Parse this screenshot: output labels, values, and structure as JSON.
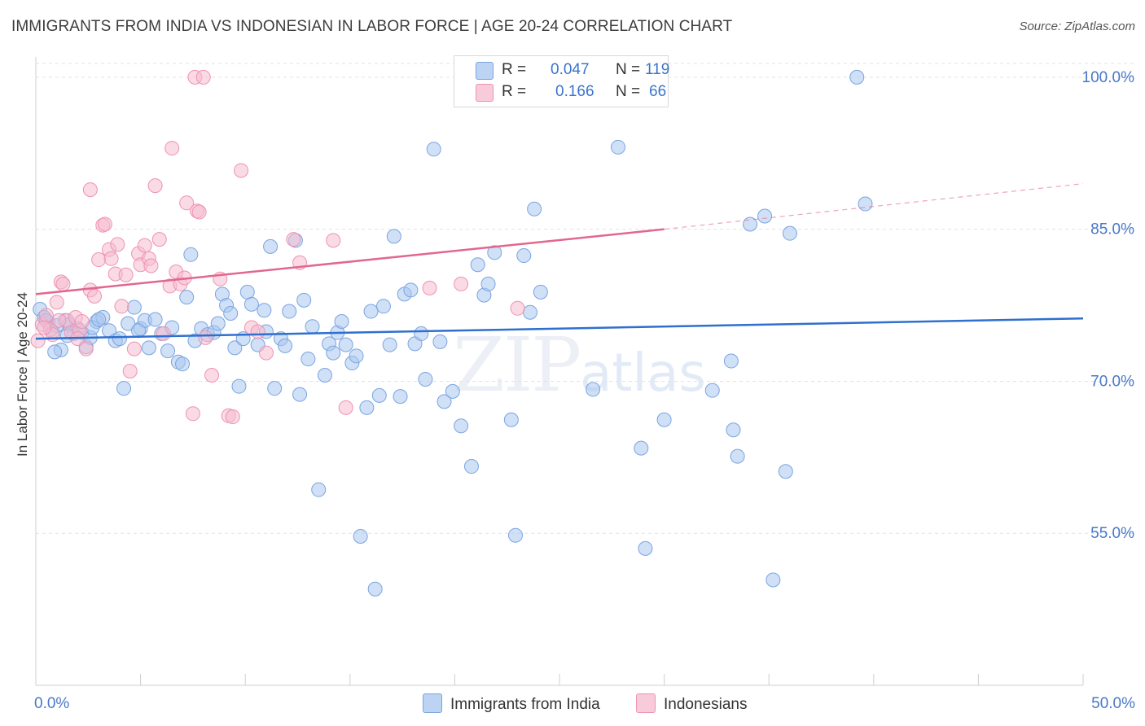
{
  "header": {
    "title": "IMMIGRANTS FROM INDIA VS INDONESIAN IN LABOR FORCE | AGE 20-24 CORRELATION CHART",
    "source": "Source: ZipAtlas.com"
  },
  "legend": {
    "series1": {
      "r_label": "R =",
      "r_value": "0.047",
      "n_label": "N =",
      "n_value": "119"
    },
    "series2": {
      "r_label": "R =",
      "r_value": "0.166",
      "n_label": "N =",
      "n_value": "66"
    }
  },
  "watermark": {
    "zip": "ZIP",
    "atlas": "atlas"
  },
  "colors": {
    "india_fill": "#a9c6ef",
    "india_stroke": "#7aa5e0",
    "india_line": "#2f6fcf",
    "indo_fill": "#f6bccf",
    "indo_stroke": "#ee93b1",
    "indo_line": "#e2678f",
    "tick_text": "#4a78c8",
    "grid": "#e3e3e3"
  },
  "chart_data": {
    "type": "scatter",
    "title": "IMMIGRANTS FROM INDIA VS INDONESIAN IN LABOR FORCE | AGE 20-24 CORRELATION CHART",
    "xlabel": "",
    "ylabel": "In Labor Force | Age 20-24",
    "xlim": [
      0,
      50
    ],
    "ylim": [
      40,
      102
    ],
    "x_tick_labels": [
      "0.0%",
      "50.0%"
    ],
    "y_ticks": [
      55,
      70,
      85,
      100
    ],
    "y_tick_labels": [
      "55.0%",
      "70.0%",
      "85.0%",
      "100.0%"
    ],
    "series": [
      {
        "name": "Immigrants from India",
        "r": 0.047,
        "n": 119,
        "trend": {
          "x0": 0,
          "y0": 74.2,
          "x1": 50,
          "y1": 76.2
        },
        "points": [
          [
            0.2,
            77.1
          ],
          [
            0.4,
            76.3
          ],
          [
            0.6,
            75.8
          ],
          [
            0.8,
            74.9
          ],
          [
            1.0,
            75.5
          ],
          [
            1.2,
            73.1
          ],
          [
            1.4,
            76.0
          ],
          [
            1.6,
            75.6
          ],
          [
            1.8,
            74.7
          ],
          [
            2.0,
            75.2
          ],
          [
            2.2,
            74.8
          ],
          [
            2.4,
            73.4
          ],
          [
            2.6,
            74.3
          ],
          [
            2.9,
            75.9
          ],
          [
            3.2,
            76.3
          ],
          [
            3.5,
            75.0
          ],
          [
            3.8,
            74.0
          ],
          [
            4.0,
            74.2
          ],
          [
            4.2,
            69.3
          ],
          [
            4.4,
            75.7
          ],
          [
            4.7,
            77.3
          ],
          [
            5.0,
            75.2
          ],
          [
            5.2,
            76.0
          ],
          [
            5.4,
            73.3
          ],
          [
            5.7,
            76.1
          ],
          [
            6.0,
            74.7
          ],
          [
            6.3,
            73.0
          ],
          [
            6.5,
            75.3
          ],
          [
            6.8,
            71.9
          ],
          [
            7.0,
            71.7
          ],
          [
            7.2,
            78.3
          ],
          [
            7.4,
            82.5
          ],
          [
            7.6,
            74.0
          ],
          [
            7.9,
            75.2
          ],
          [
            8.2,
            74.6
          ],
          [
            8.5,
            74.8
          ],
          [
            8.7,
            75.7
          ],
          [
            8.9,
            78.6
          ],
          [
            9.1,
            77.5
          ],
          [
            9.3,
            76.7
          ],
          [
            9.5,
            73.3
          ],
          [
            9.7,
            69.5
          ],
          [
            9.9,
            74.2
          ],
          [
            10.1,
            78.8
          ],
          [
            10.3,
            77.6
          ],
          [
            10.6,
            73.6
          ],
          [
            10.9,
            77.0
          ],
          [
            11.0,
            74.9
          ],
          [
            11.2,
            83.3
          ],
          [
            11.4,
            69.3
          ],
          [
            11.7,
            74.2
          ],
          [
            11.9,
            73.5
          ],
          [
            12.1,
            76.9
          ],
          [
            12.4,
            83.9
          ],
          [
            12.6,
            68.7
          ],
          [
            12.8,
            78.0
          ],
          [
            13.0,
            72.2
          ],
          [
            13.2,
            75.4
          ],
          [
            13.5,
            59.3
          ],
          [
            13.8,
            70.6
          ],
          [
            14.0,
            73.7
          ],
          [
            14.2,
            72.8
          ],
          [
            14.4,
            74.8
          ],
          [
            14.6,
            75.9
          ],
          [
            14.8,
            73.6
          ],
          [
            15.1,
            71.8
          ],
          [
            15.3,
            72.5
          ],
          [
            15.5,
            54.7
          ],
          [
            15.8,
            67.4
          ],
          [
            16.0,
            76.9
          ],
          [
            16.2,
            49.5
          ],
          [
            16.4,
            68.6
          ],
          [
            16.6,
            77.4
          ],
          [
            16.9,
            73.6
          ],
          [
            17.1,
            84.3
          ],
          [
            17.4,
            68.5
          ],
          [
            17.6,
            78.6
          ],
          [
            17.9,
            79.0
          ],
          [
            18.1,
            73.7
          ],
          [
            18.4,
            74.7
          ],
          [
            18.6,
            70.2
          ],
          [
            19.0,
            92.9
          ],
          [
            19.3,
            73.9
          ],
          [
            19.5,
            68.0
          ],
          [
            19.9,
            69.0
          ],
          [
            20.3,
            65.6
          ],
          [
            20.8,
            61.6
          ],
          [
            21.1,
            81.5
          ],
          [
            21.4,
            78.5
          ],
          [
            21.6,
            79.6
          ],
          [
            21.9,
            82.7
          ],
          [
            22.7,
            66.2
          ],
          [
            22.9,
            54.8
          ],
          [
            23.3,
            82.4
          ],
          [
            23.6,
            76.8
          ],
          [
            23.8,
            87.0
          ],
          [
            24.1,
            78.8
          ],
          [
            26.6,
            69.2
          ],
          [
            27.8,
            93.1
          ],
          [
            28.9,
            63.4
          ],
          [
            29.1,
            53.5
          ],
          [
            30.0,
            66.2
          ],
          [
            32.3,
            69.1
          ],
          [
            33.2,
            72.0
          ],
          [
            33.3,
            65.2
          ],
          [
            33.5,
            62.6
          ],
          [
            34.1,
            85.5
          ],
          [
            34.8,
            86.3
          ],
          [
            35.2,
            50.4
          ],
          [
            35.8,
            61.1
          ],
          [
            36.0,
            84.6
          ],
          [
            39.6,
            87.5
          ],
          [
            39.2,
            100.0
          ],
          [
            0.5,
            76.0
          ],
          [
            0.9,
            72.9
          ],
          [
            1.5,
            74.5
          ],
          [
            2.7,
            75.3
          ],
          [
            3.0,
            76.1
          ],
          [
            4.9,
            75.0
          ]
        ]
      },
      {
        "name": "Indonesians",
        "r": 0.166,
        "n": 66,
        "trend": {
          "x0": 0,
          "y0": 78.6,
          "x1": 30,
          "y1": 85.0
        },
        "trend_dashed": {
          "x0": 30,
          "y0": 85.0,
          "x1": 50,
          "y1": 89.5
        },
        "points": [
          [
            0.1,
            74.0
          ],
          [
            0.3,
            75.6
          ],
          [
            0.5,
            76.5
          ],
          [
            0.7,
            75.1
          ],
          [
            0.8,
            74.6
          ],
          [
            1.0,
            77.8
          ],
          [
            1.2,
            79.8
          ],
          [
            1.3,
            79.6
          ],
          [
            1.5,
            76.0
          ],
          [
            1.7,
            74.8
          ],
          [
            1.9,
            76.3
          ],
          [
            2.1,
            75.0
          ],
          [
            2.2,
            75.9
          ],
          [
            2.4,
            73.2
          ],
          [
            2.6,
            79.0
          ],
          [
            2.8,
            78.4
          ],
          [
            2.6,
            88.9
          ],
          [
            3.0,
            82.0
          ],
          [
            3.2,
            85.4
          ],
          [
            3.3,
            85.5
          ],
          [
            3.5,
            83.0
          ],
          [
            3.6,
            82.1
          ],
          [
            3.8,
            80.6
          ],
          [
            3.9,
            83.5
          ],
          [
            4.1,
            77.4
          ],
          [
            4.3,
            80.5
          ],
          [
            4.5,
            71.0
          ],
          [
            4.7,
            73.2
          ],
          [
            4.9,
            82.6
          ],
          [
            5.0,
            81.5
          ],
          [
            5.2,
            83.4
          ],
          [
            5.4,
            82.1
          ],
          [
            5.5,
            81.4
          ],
          [
            5.7,
            89.3
          ],
          [
            5.9,
            84.0
          ],
          [
            6.1,
            74.7
          ],
          [
            6.4,
            79.4
          ],
          [
            6.7,
            80.8
          ],
          [
            6.9,
            79.6
          ],
          [
            7.1,
            80.2
          ],
          [
            6.5,
            93.0
          ],
          [
            7.2,
            87.6
          ],
          [
            7.5,
            66.8
          ],
          [
            7.7,
            86.8
          ],
          [
            7.8,
            86.7
          ],
          [
            8.1,
            74.3
          ],
          [
            8.4,
            70.6
          ],
          [
            8.8,
            80.1
          ],
          [
            9.2,
            66.6
          ],
          [
            9.4,
            66.5
          ],
          [
            9.8,
            90.8
          ],
          [
            10.3,
            75.3
          ],
          [
            10.6,
            74.9
          ],
          [
            11.0,
            72.8
          ],
          [
            12.3,
            84.0
          ],
          [
            12.6,
            81.7
          ],
          [
            14.2,
            83.9
          ],
          [
            14.8,
            67.4
          ],
          [
            18.8,
            79.2
          ],
          [
            20.3,
            79.6
          ],
          [
            23.0,
            77.2
          ],
          [
            7.6,
            100.0
          ],
          [
            8.0,
            100.0
          ],
          [
            0.4,
            75.3
          ],
          [
            1.1,
            76.0
          ],
          [
            2.0,
            74.2
          ]
        ]
      }
    ]
  },
  "bottom_legend": {
    "india": "Immigrants from India",
    "indo": "Indonesians"
  }
}
